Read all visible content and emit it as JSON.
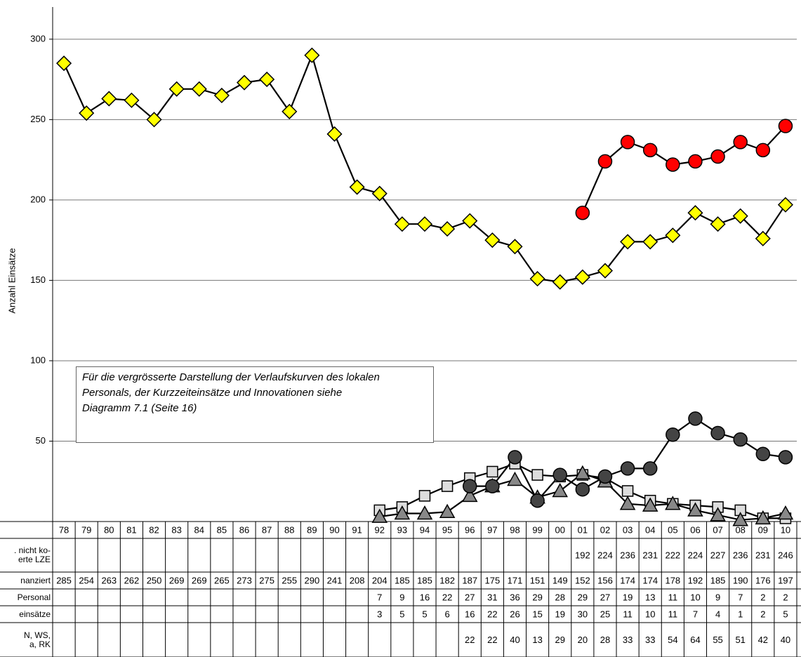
{
  "chart_data": {
    "type": "line",
    "y_label": "Anzahl Einsätze",
    "annotation": "Für die vergrösserte Darstellung der Verlaufskurven des lokalen\nPersonals, der Kurzzeiteinsätze und Innovationen siehe\nDiagramm 7.1 (Seite 16)",
    "categories": [
      "78",
      "79",
      "80",
      "81",
      "82",
      "83",
      "84",
      "85",
      "86",
      "87",
      "88",
      "89",
      "90",
      "91",
      "92",
      "93",
      "94",
      "95",
      "96",
      "97",
      "98",
      "99",
      "00",
      "01",
      "02",
      "03",
      "04",
      "05",
      "06",
      "07",
      "08",
      "09",
      "10"
    ],
    "ylim": [
      0,
      320
    ],
    "yticks": [
      {
        "value": 0,
        "label": "-"
      },
      50,
      100,
      150,
      200,
      250,
      300
    ],
    "grid": true,
    "series": [
      {
        "name": ". nicht ko-\nerte LZE",
        "color": "#ff0000",
        "marker": "circle",
        "values": [
          null,
          null,
          null,
          null,
          null,
          null,
          null,
          null,
          null,
          null,
          null,
          null,
          null,
          null,
          null,
          null,
          null,
          null,
          null,
          null,
          null,
          null,
          null,
          192,
          224,
          236,
          231,
          222,
          224,
          227,
          236,
          231,
          246
        ]
      },
      {
        "name": "nanziert",
        "color": "#ffff00",
        "marker": "diamond",
        "values": [
          285,
          254,
          263,
          262,
          250,
          269,
          269,
          265,
          273,
          275,
          255,
          290,
          241,
          208,
          204,
          185,
          185,
          182,
          187,
          175,
          171,
          151,
          149,
          152,
          156,
          174,
          174,
          178,
          192,
          185,
          190,
          176,
          197
        ]
      },
      {
        "name": " Personal",
        "color": "#dddddd",
        "marker": "square",
        "values": [
          null,
          null,
          null,
          null,
          null,
          null,
          null,
          null,
          null,
          null,
          null,
          null,
          null,
          null,
          7,
          9,
          16,
          22,
          27,
          31,
          36,
          29,
          28,
          29,
          27,
          19,
          13,
          11,
          10,
          9,
          7,
          2,
          2
        ]
      },
      {
        "name": "einsätze",
        "color": "#888888",
        "marker": "triangle",
        "values": [
          null,
          null,
          null,
          null,
          null,
          null,
          null,
          null,
          null,
          null,
          null,
          null,
          null,
          null,
          3,
          5,
          5,
          6,
          16,
          22,
          26,
          15,
          19,
          30,
          25,
          11,
          10,
          11,
          7,
          4,
          1,
          2,
          5
        ]
      },
      {
        "name": "N, WS,\na, RK",
        "color": "#444444",
        "marker": "circle",
        "values": [
          null,
          null,
          null,
          null,
          null,
          null,
          null,
          null,
          null,
          null,
          null,
          null,
          null,
          null,
          null,
          null,
          null,
          null,
          22,
          22,
          40,
          13,
          29,
          20,
          28,
          33,
          33,
          54,
          64,
          55,
          51,
          42,
          40
        ]
      }
    ]
  }
}
